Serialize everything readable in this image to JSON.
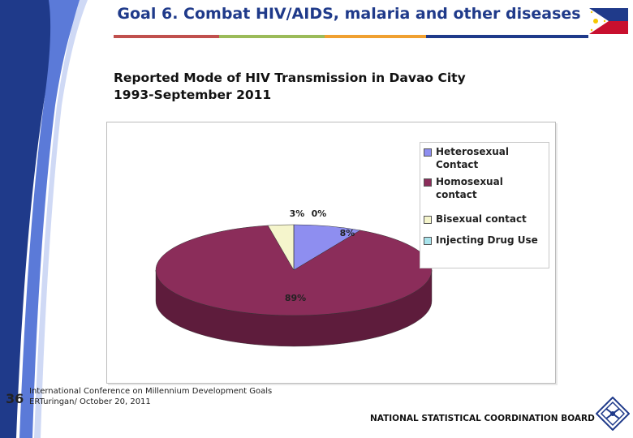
{
  "slide": {
    "title": "Goal 6. Combat HIV/AIDS, malaria and other diseases",
    "page_number": "36",
    "conference_line1": "International Conference on Millennium Development Goals",
    "conference_line2": "ERTuringan/ October 20, 2011",
    "organization": "NATIONAL STATISTICAL COORDINATION BOARD"
  },
  "colors": {
    "accent_bar": [
      "#c0504d",
      "#9bbb59",
      "#f0a030",
      "#1f3a8a"
    ],
    "title": "#1f3a8a"
  },
  "chart_data": {
    "type": "pie",
    "style": "3d",
    "title_line1": "Reported Mode of HIV Transmission in Davao City",
    "title_line2": "1993-September 2011",
    "legend_position": "top-right",
    "categories": [
      "Heterosexual Contact",
      "Homosexual contact",
      "Bisexual contact",
      "Injecting Drug Use"
    ],
    "legend_labels": [
      [
        "Heterosexual",
        "Contact"
      ],
      [
        "Homosexual contact"
      ],
      [
        "Bisexual contact"
      ],
      [
        "Injecting Drug Use"
      ]
    ],
    "values": [
      8,
      89,
      3,
      0
    ],
    "labels": [
      "8%",
      "89%",
      "3%",
      "0%"
    ],
    "colors": [
      "#8e8ef0",
      "#8b2d5a",
      "#f5f5cc",
      "#a9e4ec"
    ],
    "side_colors": [
      "#5a5ab0",
      "#5e1c3c",
      "#b5b58a",
      "#6aa4ac"
    ]
  }
}
